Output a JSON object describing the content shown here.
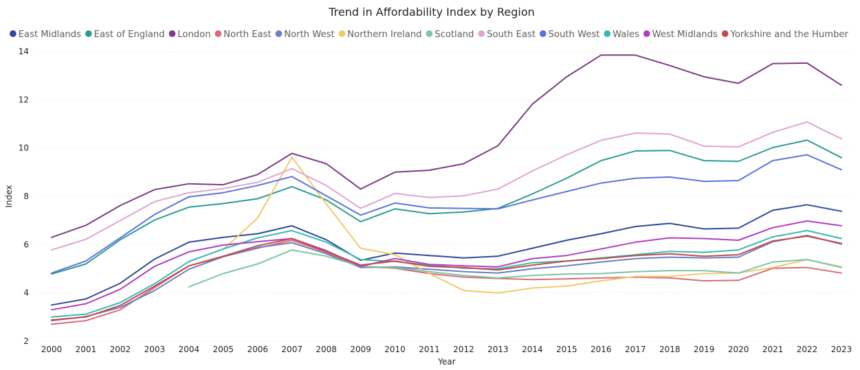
{
  "chart_data": {
    "type": "line",
    "title": "Trend in Affordability Index by Region",
    "xlabel": "Year",
    "ylabel": "Index",
    "ylim": [
      2,
      14
    ],
    "yticks": [
      "2",
      "4",
      "6",
      "8",
      "10",
      "12",
      "14"
    ],
    "grid": true,
    "legend_position": "top-left",
    "categories": [
      "2000",
      "2001",
      "2002",
      "2003",
      "2004",
      "2005",
      "2006",
      "2007",
      "2008",
      "2009",
      "2010",
      "2011",
      "2012",
      "2013",
      "2014",
      "2015",
      "2016",
      "2017",
      "2018",
      "2019",
      "2020",
      "2021",
      "2022",
      "2023"
    ],
    "series": [
      {
        "name": "East Midlands",
        "color": "#2e4a99",
        "values": [
          3.5,
          3.75,
          4.4,
          5.4,
          6.1,
          6.3,
          6.45,
          6.78,
          6.2,
          5.35,
          5.65,
          5.55,
          5.45,
          5.52,
          5.85,
          6.18,
          6.45,
          6.75,
          6.88,
          6.65,
          6.68,
          7.42,
          7.65,
          7.38
        ]
      },
      {
        "name": "East of England",
        "color": "#2a9d8f",
        "values": [
          4.78,
          5.2,
          6.2,
          7.02,
          7.55,
          7.7,
          7.9,
          8.4,
          7.85,
          6.95,
          7.48,
          7.28,
          7.35,
          7.5,
          8.1,
          8.75,
          9.48,
          9.88,
          9.9,
          9.48,
          9.45,
          10.02,
          10.33,
          9.6
        ]
      },
      {
        "name": "London",
        "color": "#7d3c83",
        "values": [
          6.3,
          6.8,
          7.62,
          8.28,
          8.52,
          8.48,
          8.9,
          9.78,
          9.35,
          8.3,
          9.0,
          9.08,
          9.35,
          10.1,
          11.82,
          12.95,
          13.85,
          13.85,
          13.42,
          12.95,
          12.68,
          13.5,
          13.52,
          12.6
        ]
      },
      {
        "name": "North East",
        "color": "#dc6a78",
        "values": [
          2.7,
          2.85,
          3.3,
          4.22,
          5.12,
          5.5,
          5.85,
          6.18,
          5.68,
          5.1,
          5.02,
          4.8,
          4.65,
          4.6,
          4.55,
          4.58,
          4.62,
          4.65,
          4.62,
          4.5,
          4.52,
          5.02,
          5.05,
          4.82
        ]
      },
      {
        "name": "North West",
        "color": "#6b7fc2",
        "values": [
          2.85,
          3.02,
          3.4,
          4.1,
          4.98,
          5.5,
          5.88,
          6.08,
          5.62,
          5.05,
          5.08,
          4.98,
          4.88,
          4.82,
          5.0,
          5.12,
          5.28,
          5.42,
          5.48,
          5.45,
          5.48,
          6.12,
          6.38,
          6.02
        ]
      },
      {
        "name": "Northern Ireland",
        "color": "#f1c96a",
        "values": [
          null,
          null,
          null,
          null,
          null,
          5.8,
          7.1,
          9.62,
          7.68,
          5.85,
          5.58,
          4.8,
          4.1,
          4.0,
          4.2,
          4.28,
          4.5,
          4.68,
          4.68,
          4.8,
          4.82,
          5.05,
          5.38,
          5.08
        ]
      },
      {
        "name": "Scotland",
        "color": "#7cc4a5",
        "values": [
          null,
          null,
          null,
          null,
          4.25,
          4.8,
          5.2,
          5.78,
          5.52,
          5.1,
          5.05,
          4.88,
          4.72,
          4.62,
          4.72,
          4.78,
          4.8,
          4.88,
          4.92,
          4.92,
          4.82,
          5.28,
          5.38,
          5.05
        ]
      },
      {
        "name": "South East",
        "color": "#e0a5cf",
        "values": [
          5.78,
          6.22,
          7.0,
          7.78,
          8.15,
          8.32,
          8.58,
          9.15,
          8.45,
          7.5,
          8.12,
          7.95,
          8.02,
          8.3,
          9.05,
          9.72,
          10.32,
          10.62,
          10.58,
          10.08,
          10.05,
          10.65,
          11.08,
          10.38
        ]
      },
      {
        "name": "South West",
        "color": "#5a74de",
        "values": [
          4.82,
          5.32,
          6.28,
          7.25,
          7.98,
          8.15,
          8.45,
          8.82,
          8.02,
          7.22,
          7.72,
          7.52,
          7.5,
          7.48,
          7.85,
          8.2,
          8.55,
          8.75,
          8.8,
          8.62,
          8.65,
          9.48,
          9.72,
          9.1
        ]
      },
      {
        "name": "Wales",
        "color": "#35b9b2",
        "values": [
          3.0,
          3.12,
          3.6,
          4.38,
          5.3,
          5.82,
          6.28,
          6.58,
          6.1,
          5.38,
          5.3,
          5.15,
          5.02,
          5.0,
          5.25,
          5.32,
          5.45,
          5.58,
          5.72,
          5.68,
          5.78,
          6.32,
          6.58,
          6.25
        ]
      },
      {
        "name": "West Midlands",
        "color": "#b03fc1",
        "values": [
          3.3,
          3.55,
          4.15,
          5.1,
          5.7,
          5.98,
          6.12,
          6.25,
          5.75,
          5.1,
          5.42,
          5.18,
          5.12,
          5.08,
          5.42,
          5.55,
          5.82,
          6.1,
          6.28,
          6.25,
          6.18,
          6.7,
          6.98,
          6.78
        ]
      },
      {
        "name": "Yorkshire and the Humber",
        "color": "#c24a4a",
        "values": [
          2.88,
          3.0,
          3.48,
          4.28,
          5.12,
          5.52,
          5.95,
          6.25,
          5.72,
          5.15,
          5.32,
          5.1,
          5.05,
          4.95,
          5.15,
          5.32,
          5.42,
          5.55,
          5.62,
          5.52,
          5.58,
          6.15,
          6.35,
          6.05
        ]
      }
    ]
  }
}
